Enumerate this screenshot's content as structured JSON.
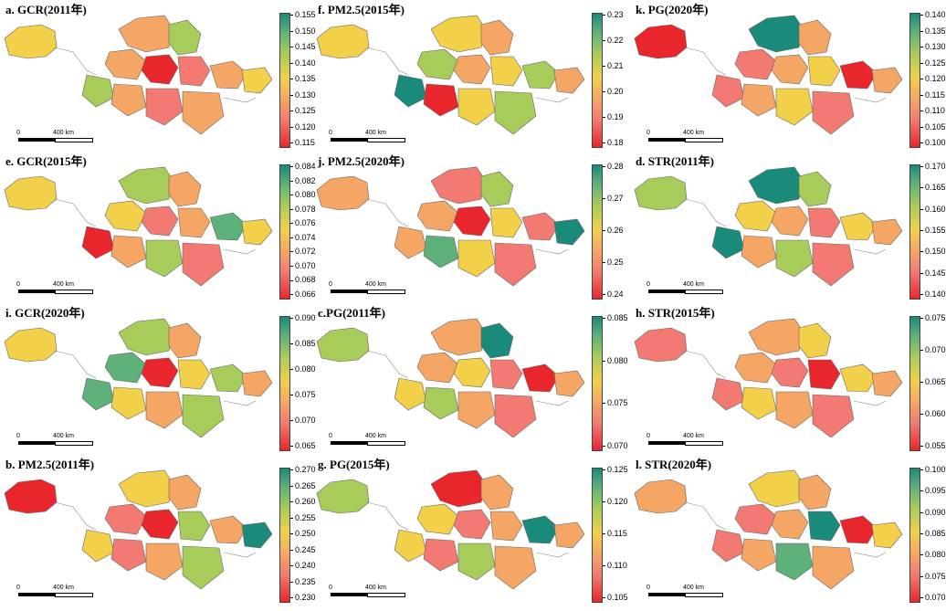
{
  "scale": {
    "zero": "0",
    "distance": "400 km"
  },
  "colors": {
    "c1": "#e8262b",
    "c2": "#f27a72",
    "c3": "#f5a665",
    "c4": "#f2d04a",
    "c5": "#a8cc5a",
    "c6": "#5fb17a",
    "c7": "#1a8a7a"
  },
  "panels": [
    {
      "title": "a. GCR(2011年)",
      "ticks": [
        "0.155",
        "0.150",
        "0.145",
        "0.140",
        "0.135",
        "0.130",
        "0.125",
        "0.120",
        "0.115"
      ],
      "palette": [
        "c4",
        "c3",
        "c5",
        "c3",
        "c1",
        "c2",
        "c3",
        "c4",
        "c5",
        "c3",
        "c2",
        "c3"
      ]
    },
    {
      "title": "e. GCR(2015年)",
      "ticks": [
        "0.084",
        "0.082",
        "0.080",
        "0.078",
        "0.076",
        "0.074",
        "0.072",
        "0.070",
        "0.068",
        "0.066"
      ],
      "palette": [
        "c4",
        "c5",
        "c3",
        "c4",
        "c2",
        "c3",
        "c6",
        "c4",
        "c1",
        "c3",
        "c5",
        "c2"
      ]
    },
    {
      "title": "i. GCR(2020年)",
      "ticks": [
        "0.090",
        "0.085",
        "0.080",
        "0.075",
        "0.070",
        "0.065"
      ],
      "palette": [
        "c4",
        "c5",
        "c3",
        "c6",
        "c1",
        "c4",
        "c5",
        "c3",
        "c6",
        "c4",
        "c3",
        "c5"
      ]
    },
    {
      "title": "b. PM2.5(2011年)",
      "ticks": [
        "0.270",
        "0.265",
        "0.260",
        "0.255",
        "0.250",
        "0.245",
        "0.240",
        "0.235",
        "0.230"
      ],
      "palette": [
        "c1",
        "c4",
        "c3",
        "c2",
        "c1",
        "c5",
        "c3",
        "c7",
        "c4",
        "c2",
        "c3",
        "c5"
      ]
    },
    {
      "title": "f. PM2.5(2015年)",
      "ticks": [
        "0.23",
        "0.22",
        "0.21",
        "0.20",
        "0.19",
        "0.18"
      ],
      "palette": [
        "c4",
        "c4",
        "c3",
        "c5",
        "c3",
        "c4",
        "c5",
        "c3",
        "c7",
        "c1",
        "c4",
        "c5"
      ]
    },
    {
      "title": "j. PM2.5(2020年)",
      "ticks": [
        "0.28",
        "0.27",
        "0.26",
        "0.25",
        "0.24"
      ],
      "palette": [
        "c3",
        "c2",
        "c5",
        "c3",
        "c1",
        "c4",
        "c2",
        "c7",
        "c3",
        "c6",
        "c4",
        "c2"
      ]
    },
    {
      "title": "c.PG(2011年)",
      "ticks": [
        "0.085",
        "0.080",
        "0.075",
        "0.070"
      ],
      "palette": [
        "c5",
        "c3",
        "c7",
        "c3",
        "c4",
        "c2",
        "c1",
        "c3",
        "c4",
        "c5",
        "c3",
        "c2"
      ]
    },
    {
      "title": "g. PG(2015年)",
      "ticks": [
        "0.125",
        "0.120",
        "0.115",
        "0.110",
        "0.105"
      ],
      "palette": [
        "c5",
        "c1",
        "c3",
        "c4",
        "c2",
        "c3",
        "c7",
        "c3",
        "c4",
        "c2",
        "c5",
        "c3"
      ]
    },
    {
      "title": "k. PG(2020年)",
      "ticks": [
        "0.140",
        "0.135",
        "0.130",
        "0.125",
        "0.120",
        "0.115",
        "0.110",
        "0.105",
        "0.100"
      ],
      "palette": [
        "c1",
        "c7",
        "c3",
        "c2",
        "c3",
        "c4",
        "c1",
        "c3",
        "c2",
        "c3",
        "c4",
        "c2"
      ]
    },
    {
      "title": "d. STR(2011年)",
      "ticks": [
        "0.170",
        "0.165",
        "0.160",
        "0.155",
        "0.150",
        "0.145",
        "0.140"
      ],
      "palette": [
        "c5",
        "c7",
        "c5",
        "c4",
        "c3",
        "c2",
        "c4",
        "c3",
        "c7",
        "c3",
        "c5",
        "c2"
      ]
    },
    {
      "title": "h. STR(2015年)",
      "ticks": [
        "0.075",
        "0.070",
        "0.065",
        "0.060",
        "0.055"
      ],
      "palette": [
        "c2",
        "c3",
        "c4",
        "c3",
        "c2",
        "c1",
        "c4",
        "c3",
        "c2",
        "c4",
        "c3",
        "c2"
      ]
    },
    {
      "title": "l. STR(2020年)",
      "ticks": [
        "0.100",
        "0.095",
        "0.090",
        "0.085",
        "0.080",
        "0.075",
        "0.070"
      ],
      "palette": [
        "c3",
        "c4",
        "c3",
        "c2",
        "c3",
        "c7",
        "c1",
        "c4",
        "c2",
        "c3",
        "c6",
        "c3"
      ]
    }
  ]
}
